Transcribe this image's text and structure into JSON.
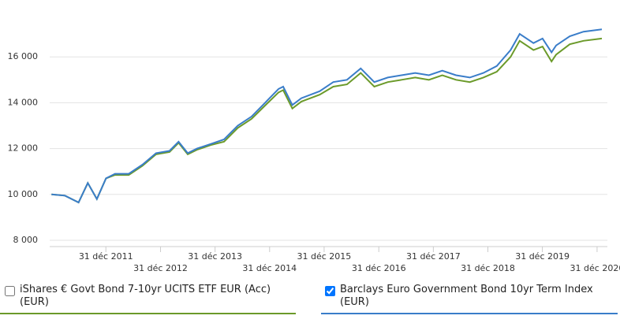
{
  "chart_data": {
    "type": "line",
    "x": [
      "2011-01",
      "2011-04",
      "2011-07",
      "2011-09",
      "2011-11",
      "2012-01",
      "2012-03",
      "2012-06",
      "2012-09",
      "2012-12",
      "2013-03",
      "2013-05",
      "2013-07",
      "2013-09",
      "2013-12",
      "2014-03",
      "2014-06",
      "2014-09",
      "2014-12",
      "2015-03",
      "2015-04",
      "2015-06",
      "2015-08",
      "2015-12",
      "2016-03",
      "2016-06",
      "2016-09",
      "2016-12",
      "2017-03",
      "2017-06",
      "2017-09",
      "2017-12",
      "2018-03",
      "2018-06",
      "2018-09",
      "2018-12",
      "2019-03",
      "2019-06",
      "2019-08",
      "2019-11",
      "2020-01",
      "2020-03",
      "2020-04",
      "2020-07",
      "2020-10",
      "2021-02"
    ],
    "series": [
      {
        "name": "iShares € Govt Bond 7-10yr UCITS ETF EUR (Acc) (EUR)",
        "color": "#6b9a2a",
        "checked": false,
        "values": [
          10000,
          9950,
          9650,
          10500,
          9800,
          10700,
          10850,
          10850,
          11250,
          11750,
          11850,
          12250,
          11750,
          11950,
          12150,
          12300,
          12900,
          13300,
          13880,
          14450,
          14550,
          13750,
          14050,
          14350,
          14700,
          14800,
          15300,
          14700,
          14900,
          15000,
          15100,
          15000,
          15200,
          15000,
          14900,
          15100,
          15350,
          16000,
          16700,
          16300,
          16450,
          15800,
          16100,
          16550,
          16700,
          16800
        ]
      },
      {
        "name": "Barclays Euro Government Bond 10yr Term Index (EUR)",
        "color": "#3a7dc9",
        "checked": true,
        "values": [
          10000,
          9950,
          9650,
          10500,
          9800,
          10700,
          10900,
          10900,
          11300,
          11800,
          11900,
          12300,
          11800,
          12000,
          12200,
          12400,
          13000,
          13400,
          14000,
          14600,
          14700,
          13900,
          14200,
          14500,
          14900,
          15000,
          15500,
          14900,
          15100,
          15200,
          15300,
          15200,
          15400,
          15200,
          15100,
          15300,
          15600,
          16300,
          17000,
          16600,
          16800,
          16200,
          16500,
          16900,
          17100,
          17200
        ]
      }
    ],
    "xlim": [
      "2010-12-20",
      "2021-03-10"
    ],
    "xticks": [
      {
        "value": "2011-12-31",
        "label": "31 déc 2011"
      },
      {
        "value": "2012-12-31",
        "label": "31 déc 2012"
      },
      {
        "value": "2013-12-31",
        "label": "31 déc 2013"
      },
      {
        "value": "2014-12-31",
        "label": "31 déc 2014"
      },
      {
        "value": "2015-12-31",
        "label": "31 déc 2015"
      },
      {
        "value": "2016-12-31",
        "label": "31 déc 2016"
      },
      {
        "value": "2017-12-31",
        "label": "31 déc 2017"
      },
      {
        "value": "2018-12-31",
        "label": "31 déc 2018"
      },
      {
        "value": "2019-12-31",
        "label": "31 déc 2019"
      },
      {
        "value": "2020-12-31",
        "label": "31 déc 2020"
      }
    ],
    "ylim": [
      8000,
      18000
    ],
    "yticks": [
      {
        "value": 8000,
        "label": "8 000"
      },
      {
        "value": 10000,
        "label": "10 000"
      },
      {
        "value": 12000,
        "label": "12 000"
      },
      {
        "value": 14000,
        "label": "14 000"
      },
      {
        "value": 16000,
        "label": "16 000"
      }
    ],
    "grid": true
  }
}
